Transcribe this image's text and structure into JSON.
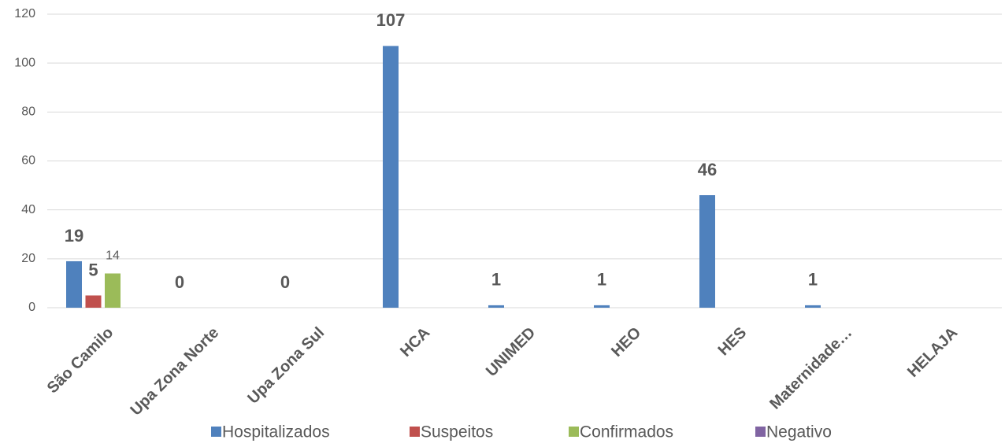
{
  "chart_data": {
    "type": "bar",
    "categories": [
      "São Camilo",
      "Upa Zona Norte",
      "Upa Zona Sul",
      "HCA",
      "UNIMED",
      "HEO",
      "HES",
      "Maternidade…",
      "HELAJA"
    ],
    "series": [
      {
        "name": "Hospitalizados",
        "color": "#4f81bd",
        "values": [
          19,
          0,
          0,
          107,
          1,
          1,
          46,
          1,
          null
        ]
      },
      {
        "name": "Suspeitos",
        "color": "#c0504d",
        "values": [
          5,
          null,
          null,
          null,
          null,
          null,
          null,
          null,
          null
        ]
      },
      {
        "name": "Confirmados",
        "color": "#9bbb59",
        "values": [
          14,
          null,
          null,
          null,
          null,
          null,
          null,
          null,
          null
        ]
      },
      {
        "name": "Negativo",
        "color": "#8064a2",
        "values": [
          null,
          null,
          null,
          null,
          null,
          null,
          null,
          null,
          null
        ]
      }
    ],
    "ylim": [
      0,
      120
    ],
    "yticks": [
      0,
      20,
      40,
      60,
      80,
      100,
      120
    ],
    "grid": true,
    "legend": "bottom"
  }
}
